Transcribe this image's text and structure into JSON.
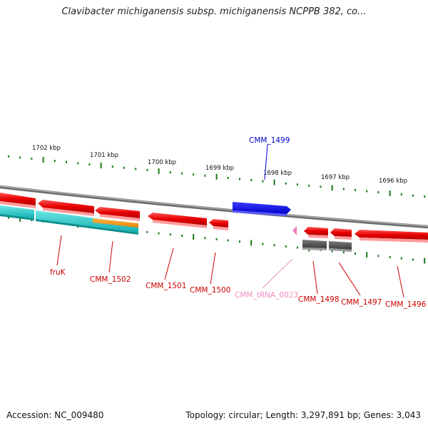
{
  "title": "Clavibacter michiganensis subsp. michiganensis NCPPB 382, co...",
  "footer": {
    "accession": "Accession: NC_009480",
    "topology": "Topology: circular; Length: 3,297,891 bp; Genes: 3,043"
  },
  "scale": {
    "unit": "kbp",
    "ticks": [
      "1702 kbp",
      "1701 kbp",
      "1700 kbp",
      "1699 kbp",
      "1698 kbp",
      "1697 kbp",
      "1696 kbp"
    ]
  },
  "colors": {
    "cds": "#ff0000",
    "trna": "#ee82b8",
    "blue_feature": "#0000ee",
    "rna_row": "#00c8c8",
    "orange_row": "#ff9900",
    "grey_row": "#5a5a5a",
    "tick": "#1a7a1a",
    "backbone": "#808080",
    "cds_label": "#cc0000",
    "blue_label": "#0000cc",
    "trna_label": "#f08cc0"
  },
  "genes": [
    {
      "name": "fruK",
      "color": "cds_label"
    },
    {
      "name": "CMM_1502",
      "color": "cds_label"
    },
    {
      "name": "CMM_1501",
      "color": "cds_label"
    },
    {
      "name": "CMM_1500",
      "color": "cds_label"
    },
    {
      "name": "CMM_1499",
      "color": "blue_label"
    },
    {
      "name": "CMM_tRNA_0023",
      "color": "trna_label"
    },
    {
      "name": "CMM_1498",
      "color": "cds_label"
    },
    {
      "name": "CMM_1497",
      "color": "cds_label"
    },
    {
      "name": "CMM_1496",
      "color": "cds_label"
    }
  ]
}
